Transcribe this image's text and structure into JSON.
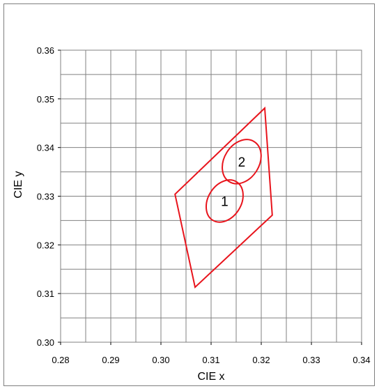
{
  "chart_data": {
    "type": "scatter",
    "title": "",
    "xlabel": "CIE x",
    "ylabel": "CIE y",
    "xlim": [
      0.28,
      0.34
    ],
    "ylim": [
      0.3,
      0.36
    ],
    "xticks": [
      0.28,
      0.29,
      0.3,
      0.31,
      0.32,
      0.33,
      0.34
    ],
    "yticks": [
      0.3,
      0.31,
      0.32,
      0.33,
      0.34,
      0.35,
      0.36
    ],
    "xtick_labels": [
      "0.28",
      "0.29",
      "0.30",
      "0.31",
      "0.32",
      "0.33",
      "0.34"
    ],
    "ytick_labels": [
      "0.30",
      "0.31",
      "0.32",
      "0.33",
      "0.34",
      "0.35",
      "0.36"
    ],
    "minor_grid_step_y": 0.005,
    "grid": true,
    "series_color": "#e8141c",
    "quadrangle": {
      "points": [
        [
          0.3028,
          0.3304
        ],
        [
          0.3207,
          0.3481
        ],
        [
          0.3222,
          0.3261
        ],
        [
          0.3068,
          0.3113
        ]
      ]
    },
    "ellipses": [
      {
        "label": "1",
        "center": [
          0.3127,
          0.329
        ],
        "semi_axis_x": 0.0045,
        "semi_axis_y": 0.0034,
        "rotation_deg": -58
      },
      {
        "label": "2",
        "center": [
          0.3161,
          0.3371
        ],
        "semi_axis_x": 0.0047,
        "semi_axis_y": 0.0036,
        "rotation_deg": -58
      }
    ]
  }
}
